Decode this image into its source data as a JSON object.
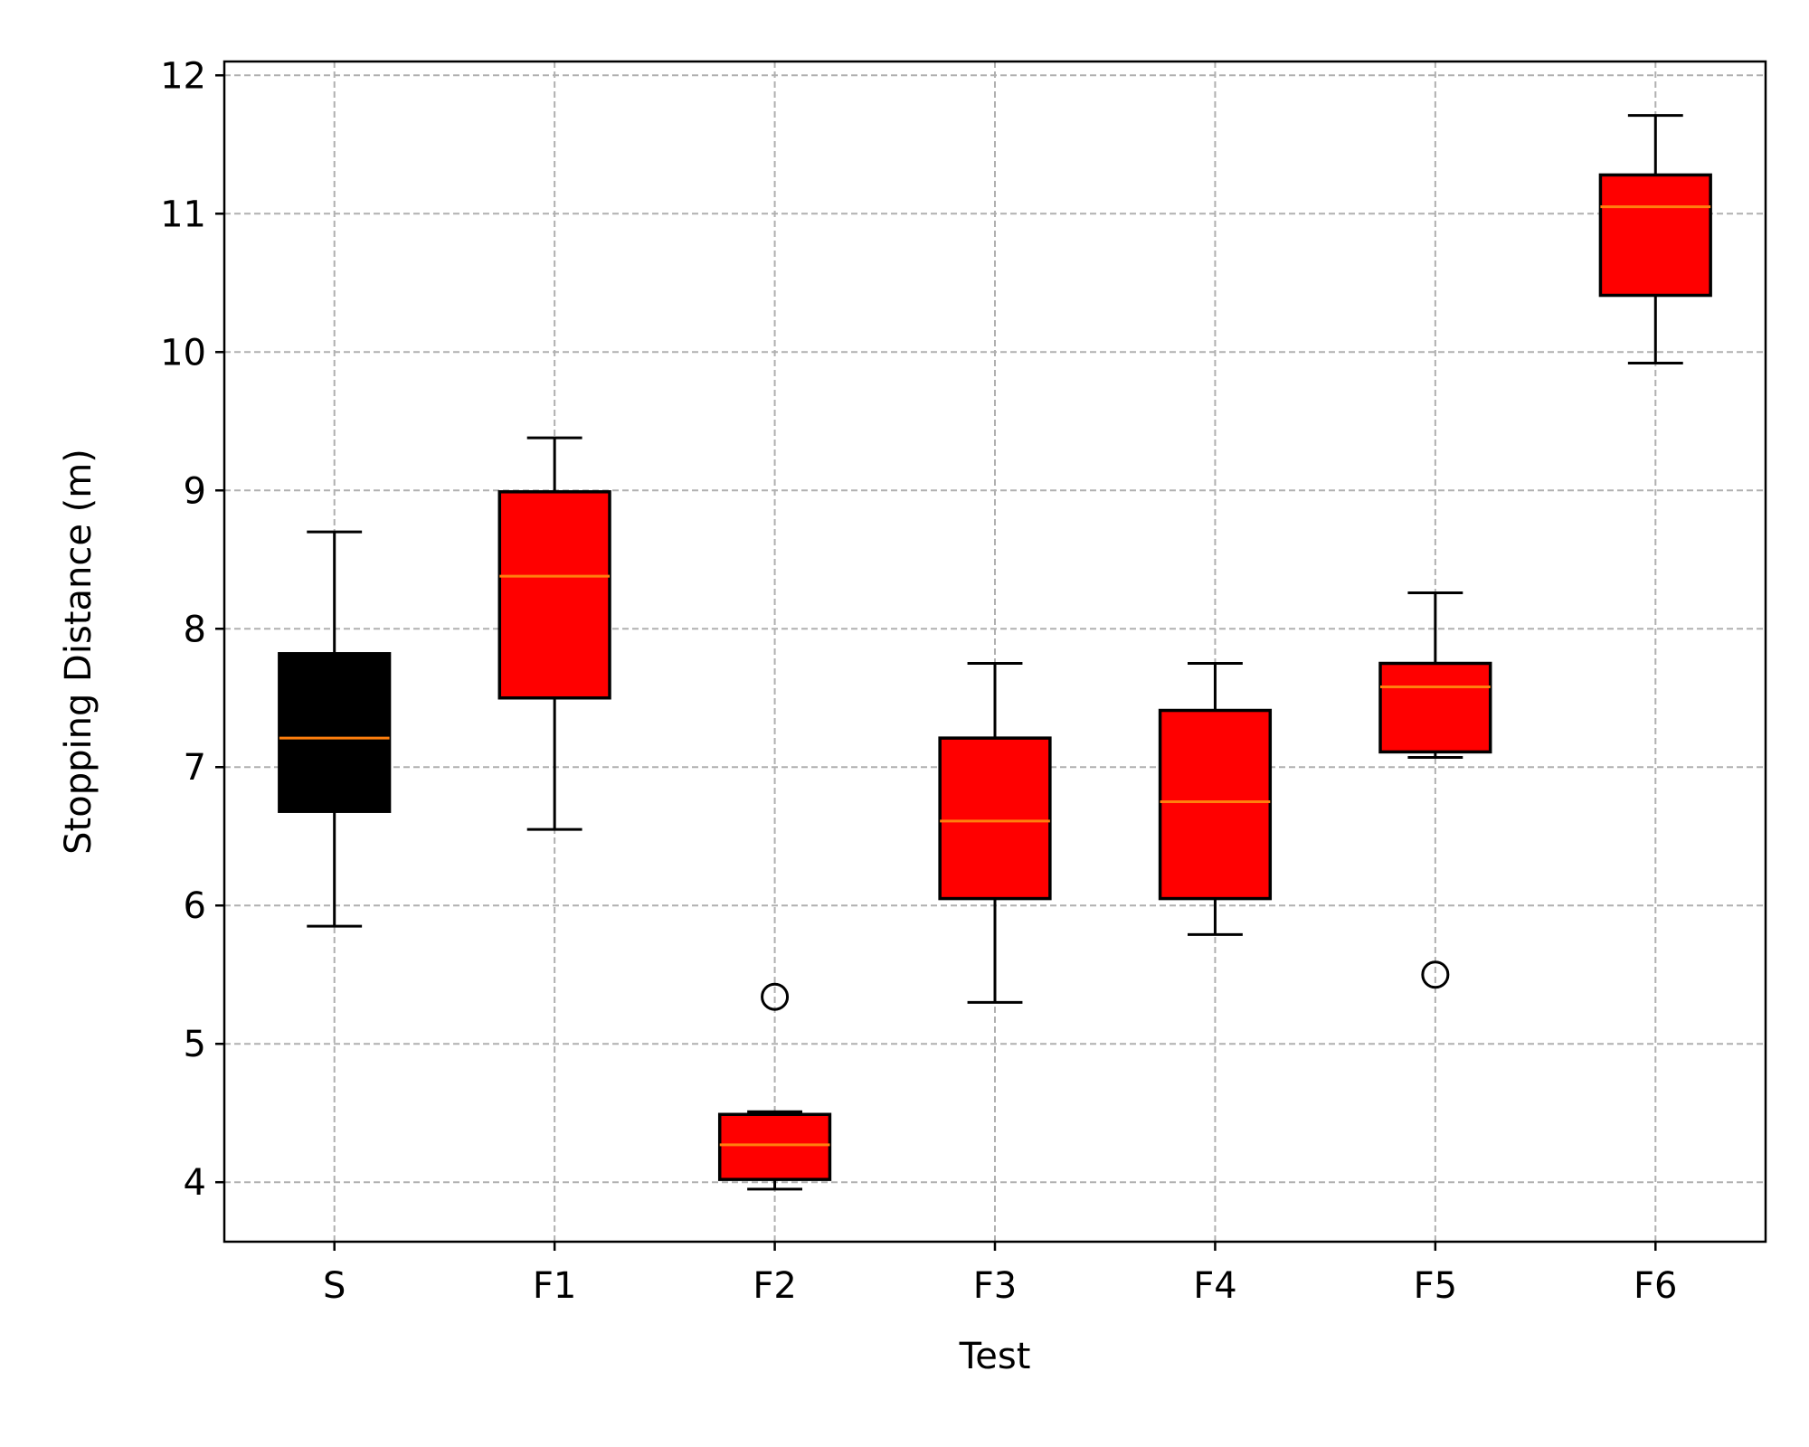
{
  "chart_data": {
    "type": "box",
    "title": "",
    "xlabel": "Test",
    "ylabel": "Stopping Distance (m)",
    "categories": [
      "S",
      "F1",
      "F2",
      "F3",
      "F4",
      "F5",
      "F6"
    ],
    "ylim": [
      3.57,
      12.1
    ],
    "yticks": [
      4,
      5,
      6,
      7,
      8,
      9,
      10,
      11,
      12
    ],
    "grid": true,
    "boxes": [
      {
        "label": "S",
        "whisker_low": 5.85,
        "q1": 6.68,
        "median": 7.21,
        "q3": 7.82,
        "whisker_high": 8.7,
        "outliers": [],
        "color": "#000000"
      },
      {
        "label": "F1",
        "whisker_low": 6.55,
        "q1": 7.5,
        "median": 8.38,
        "q3": 8.99,
        "whisker_high": 9.38,
        "outliers": [],
        "color": "#ff0000"
      },
      {
        "label": "F2",
        "whisker_low": 3.95,
        "q1": 4.02,
        "median": 4.27,
        "q3": 4.49,
        "whisker_high": 4.51,
        "outliers": [
          5.34
        ],
        "color": "#ff0000"
      },
      {
        "label": "F3",
        "whisker_low": 5.3,
        "q1": 6.05,
        "median": 6.61,
        "q3": 7.21,
        "whisker_high": 7.75,
        "outliers": [],
        "color": "#ff0000"
      },
      {
        "label": "F4",
        "whisker_low": 5.79,
        "q1": 6.05,
        "median": 6.75,
        "q3": 7.41,
        "whisker_high": 7.75,
        "outliers": [],
        "color": "#ff0000"
      },
      {
        "label": "F5",
        "whisker_low": 7.07,
        "q1": 7.11,
        "median": 7.58,
        "q3": 7.75,
        "whisker_high": 8.26,
        "outliers": [
          5.5
        ],
        "color": "#ff0000"
      },
      {
        "label": "F6",
        "whisker_low": 9.92,
        "q1": 10.41,
        "median": 11.05,
        "q3": 11.28,
        "whisker_high": 11.71,
        "outliers": [],
        "color": "#ff0000"
      }
    ],
    "median_color": "#ff7f0e",
    "grid_color": "#b0b0b0"
  }
}
